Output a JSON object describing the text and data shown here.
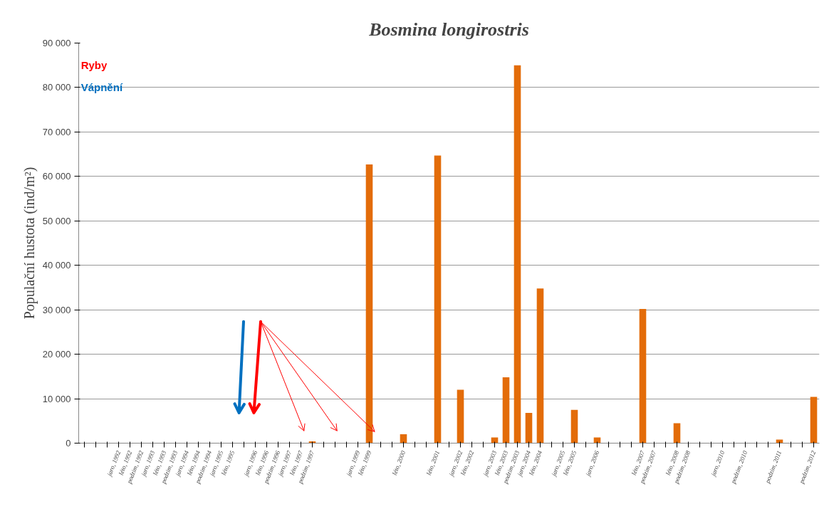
{
  "chart_data": {
    "type": "bar",
    "title": "Bosmina longirostris",
    "ylabel": "Populační hustota (ind/m²)",
    "categories": [
      null,
      null,
      null,
      "jaro, 1992",
      "léto, 1992",
      "podzim, 1992",
      "jaro, 1993",
      "léto, 1993",
      "podzim, 1993",
      "jaro, 1994",
      "léto, 1994",
      "podzim, 1994",
      "jaro, 1995",
      "léto, 1995",
      null,
      "jaro, 1996",
      "léto, 1996",
      "podzim, 1996",
      "jaro, 1997",
      "léto, 1997",
      "podzim, 1997",
      null,
      null,
      null,
      "jaro, 1999",
      "léto, 1999",
      null,
      null,
      "léto, 2000",
      null,
      null,
      "léto, 2001",
      null,
      "jaro, 2002",
      "léto, 2002",
      null,
      "jaro, 2003",
      "léto, 2003",
      "podzim, 2003",
      "jaro, 2004",
      "léto, 2004",
      null,
      "jaro, 2005",
      "léto, 2005",
      null,
      "jaro, 2006",
      null,
      null,
      null,
      "léto, 2007",
      "podzim, 2007",
      null,
      "léto, 2008",
      "podzim, 2008",
      null,
      null,
      "jaro, 2010",
      null,
      "podzim, 2010",
      null,
      null,
      "podzim, 2011",
      null,
      null,
      "podzim, 2012"
    ],
    "values": [
      0,
      0,
      0,
      0,
      0,
      0,
      0,
      0,
      0,
      0,
      0,
      0,
      0,
      0,
      0,
      0,
      0,
      0,
      0,
      0,
      400,
      0,
      0,
      0,
      0,
      62700,
      0,
      0,
      2000,
      0,
      0,
      64700,
      0,
      12000,
      0,
      0,
      1300,
      14800,
      85000,
      6800,
      34800,
      0,
      0,
      7500,
      0,
      1300,
      0,
      0,
      0,
      30200,
      0,
      0,
      4500,
      0,
      0,
      0,
      0,
      0,
      0,
      0,
      0,
      800,
      0,
      0,
      10400
    ],
    "color": "#e36c09",
    "ylim": [
      0,
      90000
    ],
    "yticks": [
      {
        "value": 0,
        "label": "0"
      },
      {
        "value": 10000,
        "label": "10 000"
      },
      {
        "value": 20000,
        "label": "20 000"
      },
      {
        "value": 30000,
        "label": "30 000"
      },
      {
        "value": 40000,
        "label": "40 000"
      },
      {
        "value": 50000,
        "label": "50 000"
      },
      {
        "value": 60000,
        "label": "60 000"
      },
      {
        "value": 70000,
        "label": "70 000"
      },
      {
        "value": 80000,
        "label": "80 000"
      },
      {
        "value": 90000,
        "label": "90 000"
      }
    ],
    "grid": "y",
    "annotations": [
      "Ryby",
      "Vápnění"
    ]
  }
}
